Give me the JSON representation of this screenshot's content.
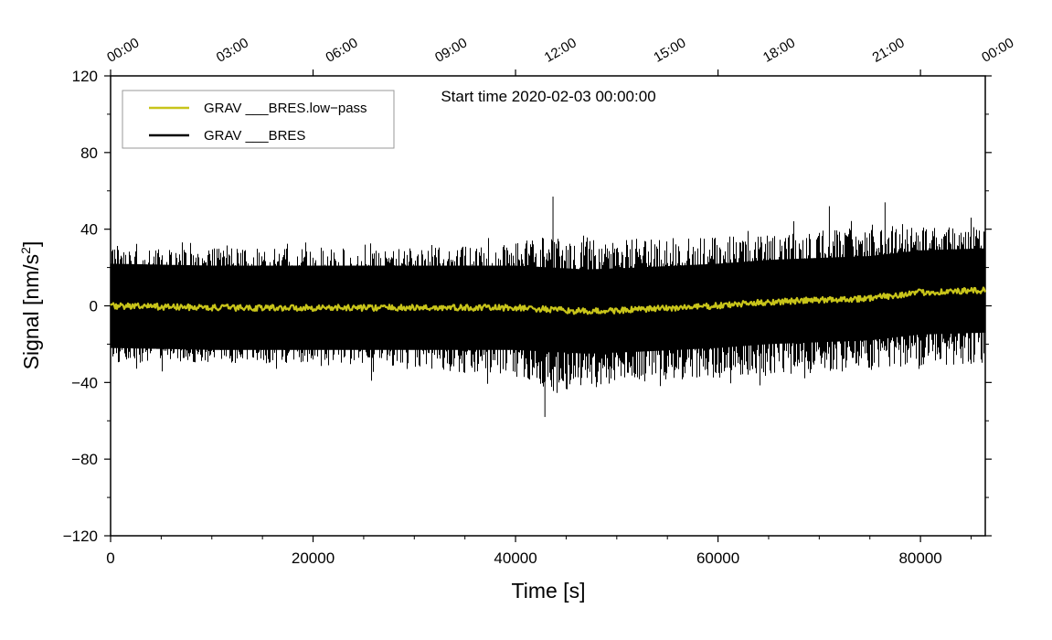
{
  "chart_data": {
    "type": "line",
    "annotation": "Start time 2020-02-03 00:00:00",
    "xlabel": "Time [s]",
    "ylabel_prefix": "Signal [nm/s",
    "ylabel_sup": "2",
    "ylabel_suffix": "]",
    "xlim": [
      0,
      86400
    ],
    "ylim": [
      -120,
      120
    ],
    "x_ticks": [
      0,
      20000,
      40000,
      60000,
      80000
    ],
    "x_tick_labels": [
      "0",
      "20000",
      "40000",
      "60000",
      "80000"
    ],
    "y_ticks": [
      -120,
      -80,
      -40,
      0,
      40,
      80,
      120
    ],
    "y_tick_labels": [
      "−120",
      "−80",
      "−40",
      "0",
      "40",
      "80",
      "120"
    ],
    "top_axis_ticks": [
      0,
      10800,
      21600,
      32400,
      43200,
      54000,
      64800,
      75600,
      86400
    ],
    "top_axis_labels": [
      "00:00",
      "03:00",
      "06:00",
      "09:00",
      "12:00",
      "15:00",
      "18:00",
      "21:00",
      "00:00"
    ],
    "legend": [
      {
        "name": "GRAV ___BRES.low−pass",
        "color": "#c8c41a"
      },
      {
        "name": "GRAV ___BRES",
        "color": "#000000"
      }
    ],
    "series": [
      {
        "name": "GRAV ___BRES",
        "color": "#000000",
        "description": "raw residual signal, roughly ±30 nm/s² noise band with spikes",
        "envelope_x": [
          0,
          10000,
          20000,
          30000,
          40000,
          44000,
          50000,
          60000,
          70000,
          80000,
          86400
        ],
        "envelope_upper": [
          30,
          30,
          30,
          30,
          33,
          38,
          35,
          36,
          40,
          42,
          40
        ],
        "envelope_lower": [
          -30,
          -30,
          -30,
          -32,
          -38,
          -45,
          -40,
          -38,
          -35,
          -32,
          -30
        ],
        "spikes_x": [
          42900,
          43700,
          71000,
          76500,
          85000
        ],
        "spikes_y": [
          -58,
          57,
          52,
          54,
          46
        ]
      },
      {
        "name": "GRAV ___BRES.low−pass",
        "color": "#c8c41a",
        "x": [
          0,
          10000,
          20000,
          30000,
          40000,
          47000,
          52000,
          60000,
          65000,
          70000,
          75000,
          80000,
          86400
        ],
        "y": [
          0,
          -1,
          -1,
          -1,
          -1,
          -3,
          -2,
          0,
          2,
          3,
          4,
          7,
          8
        ]
      }
    ]
  }
}
